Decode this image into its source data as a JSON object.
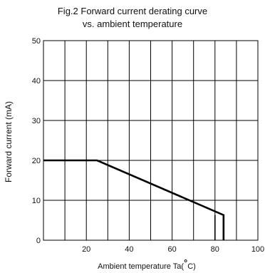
{
  "chart_data": {
    "type": "line",
    "title": "Fig.2 Forward current derating curve",
    "subtitle": "vs. ambient temperature",
    "xlabel_prefix": "Ambient temperature Ta(",
    "xlabel_degree": "°",
    "xlabel_unit": "C)",
    "ylabel": "Forward current (mA)",
    "xlim": [
      0,
      100
    ],
    "ylim": [
      0,
      50
    ],
    "grid": true,
    "legend": "none",
    "x_ticks": [
      "20",
      "40",
      "60",
      "80",
      "100"
    ],
    "y_ticks": [
      "0",
      "10",
      "20",
      "30",
      "40",
      "50"
    ],
    "x_tick_values": [
      20,
      40,
      60,
      80,
      100
    ],
    "y_tick_values": [
      0,
      10,
      20,
      30,
      40,
      50
    ],
    "x_grid_values": [
      10,
      20,
      30,
      40,
      50,
      60,
      70,
      80,
      90,
      100
    ],
    "y_grid_values": [
      10,
      20,
      30,
      40,
      50
    ],
    "series": [
      {
        "x": [
          0,
          25,
          84,
          84
        ],
        "y": [
          20,
          20,
          6.3,
          0
        ]
      }
    ],
    "marker_lines": [
      {
        "x": 80,
        "y": [
          0,
          6.3
        ]
      }
    ],
    "line_color": "#000000"
  }
}
